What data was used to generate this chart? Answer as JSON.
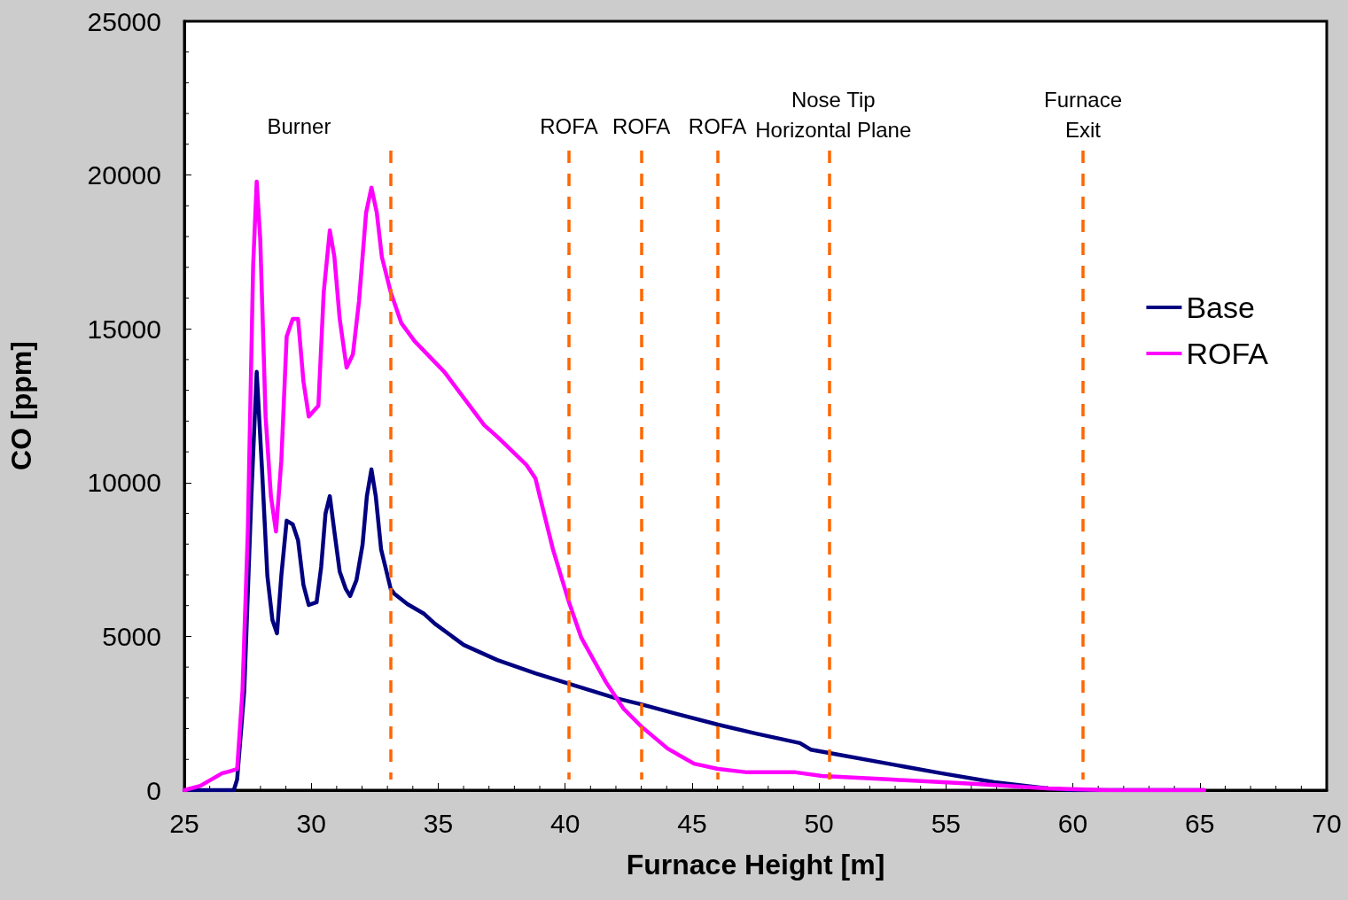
{
  "chart_data": {
    "type": "line",
    "xlabel": "Furnace Height [m]",
    "ylabel": "CO [ppm]",
    "xlim": [
      25,
      70
    ],
    "xticks": [
      25,
      30,
      35,
      40,
      45,
      50,
      55,
      60,
      65,
      70
    ],
    "ylim": [
      0,
      25000
    ],
    "yticks": [
      0,
      5000,
      10000,
      15000,
      20000,
      25000
    ],
    "grid": false,
    "legend": "right",
    "marker": "none",
    "line_style": "solid",
    "series": [
      {
        "name": "Base",
        "color": "#000080",
        "x": [
          25,
          26.95,
          27.08,
          27.36,
          27.64,
          27.85,
          28.06,
          28.27,
          28.47,
          28.65,
          28.82,
          29.03,
          29.27,
          29.48,
          29.69,
          29.9,
          30.21,
          30.39,
          30.56,
          30.73,
          30.91,
          31.12,
          31.36,
          31.53,
          31.78,
          32.02,
          32.19,
          32.37,
          32.54,
          32.75,
          32.92,
          33.13,
          33.27,
          33.79,
          34.45,
          34.87,
          36.01,
          37.33,
          38.83,
          40.15,
          41.96,
          43.0,
          44.39,
          46.02,
          47.52,
          49.25,
          49.67,
          50.4,
          52.73,
          54.81,
          56.9,
          58.98,
          60.02,
          65.17
        ],
        "values": [
          0,
          0,
          350,
          3230,
          9560,
          13600,
          10430,
          6970,
          5530,
          5100,
          6970,
          8760,
          8640,
          8120,
          6680,
          6020,
          6110,
          7260,
          8990,
          9560,
          8410,
          7110,
          6540,
          6310,
          6830,
          7980,
          9560,
          10430,
          9560,
          7830,
          7260,
          6540,
          6390,
          6050,
          5730,
          5410,
          4720,
          4230,
          3800,
          3460,
          3000,
          2790,
          2480,
          2130,
          1840,
          1530,
          1320,
          1210,
          860,
          550,
          260,
          60,
          0,
          0
        ]
      },
      {
        "name": "ROFA",
        "color": "#ff00ff",
        "x": [
          25,
          25.63,
          26.49,
          26.74,
          27.08,
          27.29,
          27.5,
          27.71,
          27.85,
          27.99,
          28.2,
          28.41,
          28.61,
          28.82,
          29.03,
          29.27,
          29.48,
          29.69,
          29.9,
          30.28,
          30.49,
          30.73,
          30.91,
          31.12,
          31.39,
          31.64,
          31.88,
          32.16,
          32.37,
          32.58,
          32.78,
          33.13,
          33.55,
          34.07,
          35.25,
          36.81,
          37.33,
          38.48,
          38.83,
          39.0,
          39.52,
          40.15,
          40.64,
          41.61,
          42.3,
          43.0,
          44.04,
          45.08,
          46.02,
          47.17,
          49.08,
          50.12,
          52.73,
          56.2,
          58.98,
          61.4,
          65.17
        ],
        "values": [
          0,
          140,
          550,
          600,
          690,
          3230,
          8410,
          17050,
          19790,
          17910,
          12150,
          9560,
          8410,
          10710,
          14750,
          15320,
          15320,
          13300,
          12150,
          12500,
          16190,
          18200,
          17340,
          15320,
          13740,
          14170,
          15900,
          18780,
          19590,
          18780,
          17340,
          16190,
          15180,
          14600,
          13590,
          11870,
          11490,
          10570,
          10140,
          9560,
          7830,
          6110,
          4950,
          3510,
          2650,
          2070,
          1350,
          860,
          690,
          580,
          580,
          460,
          350,
          200,
          60,
          0,
          0
        ]
      }
    ],
    "ref_lines": [
      {
        "axis": "x",
        "value": 33.13,
        "color": "#ff6600",
        "line_style": "dashed"
      },
      {
        "axis": "x",
        "value": 40.15,
        "color": "#ff6600",
        "line_style": "dashed",
        "label": "ROFA"
      },
      {
        "axis": "x",
        "value": 43.0,
        "color": "#ff6600",
        "line_style": "dashed",
        "label": "ROFA"
      },
      {
        "axis": "x",
        "value": 46.0,
        "color": "#ff6600",
        "line_style": "dashed",
        "label": "ROFA"
      },
      {
        "axis": "x",
        "value": 50.4,
        "color": "#ff6600",
        "line_style": "dashed",
        "label": "Nose Tip\nHorizontal Plane"
      },
      {
        "axis": "x",
        "value": 60.4,
        "color": "#ff6600",
        "line_style": "dashed",
        "label": "Furnace\nExit"
      }
    ],
    "annotations": [
      "Burner"
    ]
  }
}
